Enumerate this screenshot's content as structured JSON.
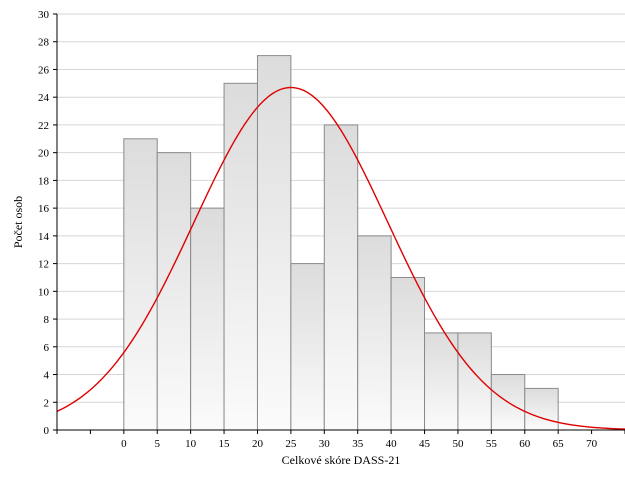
{
  "chart_data": {
    "type": "bar",
    "subtype": "histogram with normal curve",
    "title": "",
    "xlabel": "Celkové skóre DASS-21",
    "ylabel": "Počet osob",
    "xlim": [
      -10,
      75
    ],
    "ylim": [
      0,
      30
    ],
    "x_ticks": [
      0,
      5,
      10,
      15,
      20,
      25,
      30,
      35,
      40,
      45,
      50,
      55,
      60,
      65,
      70
    ],
    "y_ticks": [
      0,
      2,
      4,
      6,
      8,
      10,
      12,
      14,
      16,
      18,
      20,
      22,
      24,
      26,
      28,
      30
    ],
    "bin_width": 5,
    "bins": [
      {
        "from": 0,
        "to": 5,
        "count": 21
      },
      {
        "from": 5,
        "to": 10,
        "count": 20
      },
      {
        "from": 10,
        "to": 15,
        "count": 16
      },
      {
        "from": 15,
        "to": 20,
        "count": 25
      },
      {
        "from": 20,
        "to": 25,
        "count": 27
      },
      {
        "from": 25,
        "to": 30,
        "count": 12
      },
      {
        "from": 30,
        "to": 35,
        "count": 22
      },
      {
        "from": 35,
        "to": 40,
        "count": 14
      },
      {
        "from": 40,
        "to": 45,
        "count": 11
      },
      {
        "from": 45,
        "to": 50,
        "count": 7
      },
      {
        "from": 50,
        "to": 55,
        "count": 7
      },
      {
        "from": 55,
        "to": 60,
        "count": 4
      },
      {
        "from": 60,
        "to": 65,
        "count": 3
      }
    ],
    "normal_curve": {
      "mean": 25,
      "peak": 24.7,
      "sd": 14.5
    },
    "grid": "horizontal",
    "colors": {
      "bar_fill_top": "#dcdcdc",
      "bar_fill_bottom": "#fbfbfb",
      "bar_stroke": "#8a8a8a",
      "curve": "#e00000",
      "grid": "#d7d7d7"
    }
  }
}
